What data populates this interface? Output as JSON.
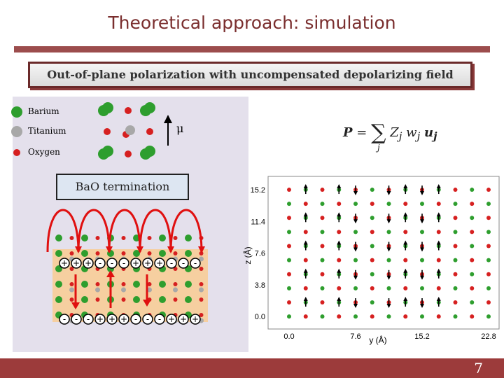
{
  "slide": {
    "title": "Theoretical approach: simulation",
    "header": "Out-of-plane polarization with uncompensated depolarizing field",
    "termination_label": "BaO termination",
    "mu_symbol": "μ",
    "page_number": "7"
  },
  "legend": [
    {
      "label": "Barium",
      "color": "#2e9e2e"
    },
    {
      "label": "Titanium",
      "color": "#a8a8a8"
    },
    {
      "label": "Oxygen",
      "color": "#d62020"
    }
  ],
  "formula": {
    "P": "P",
    "equals": "=",
    "sum": "∑",
    "sum_index": "j",
    "terms": "Z",
    "j1": "j",
    "w": "w",
    "j2": "j",
    "u": "u",
    "j3": "j"
  },
  "surface_charges": {
    "top": [
      "+",
      "+",
      "+",
      "-",
      "-",
      "-",
      "+",
      "+",
      "+",
      "-",
      "-",
      "-"
    ],
    "bottom": [
      "-",
      "-",
      "-",
      "+",
      "+",
      "+",
      "-",
      "-",
      "-",
      "+",
      "+",
      "+"
    ]
  },
  "colors": {
    "accent": "#9c3b3b",
    "title": "#7a2e2e",
    "barium": "#2e9e2e",
    "titanium": "#a8a8a8",
    "oxygen": "#d62020",
    "slab": "#f6cfa0",
    "arrow_red": "#e01010"
  },
  "chart_data": {
    "type": "scatter",
    "xlabel": "y (Å)",
    "ylabel": "z (Å)",
    "xticks": [
      "0.0",
      "7.6",
      "15.2",
      "22.8"
    ],
    "yticks": [
      "0.0",
      "3.8",
      "7.6",
      "11.4",
      "15.2"
    ],
    "xlim": [
      -2.4,
      24.0
    ],
    "ylim": [
      -1.5,
      16.8
    ],
    "columns": 13,
    "rows": 10,
    "dipole_columns_down": [
      4,
      6,
      8
    ],
    "dipole_columns_up": [
      1,
      3,
      7,
      9
    ]
  }
}
